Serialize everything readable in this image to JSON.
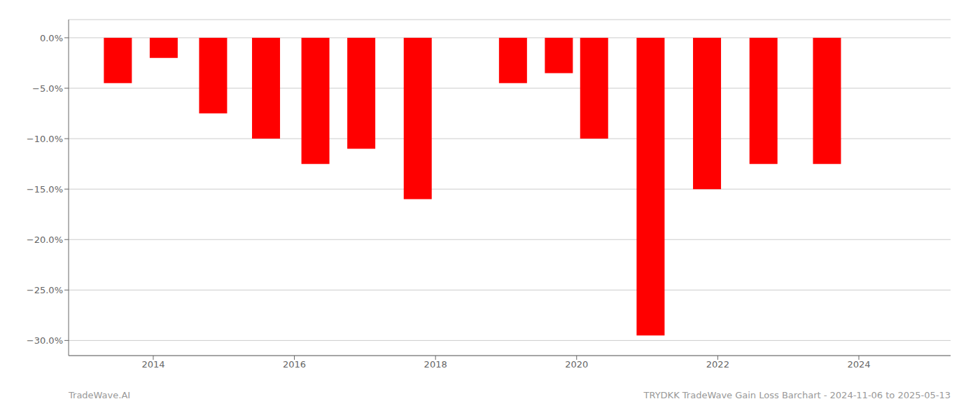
{
  "chart_data": {
    "type": "bar",
    "x": [
      2013.5,
      2014.15,
      2014.85,
      2015.6,
      2016.3,
      2016.95,
      2017.75,
      2019.1,
      2019.75,
      2020.25,
      2021.05,
      2021.85,
      2022.65,
      2023.55
    ],
    "values": [
      -4.5,
      -2.0,
      -7.5,
      -10.0,
      -12.5,
      -11.0,
      -16.0,
      -4.5,
      -3.5,
      -10.0,
      -29.5,
      -15.0,
      -12.5,
      -12.5
    ],
    "color": "#FF0000",
    "xlim": [
      2012.8,
      2025.3
    ],
    "xticks": [
      2014,
      2016,
      2018,
      2020,
      2022,
      2024
    ],
    "ylim": [
      -31.5,
      1.8
    ],
    "yticks": [
      {
        "value": 0.0,
        "label": "0.0%"
      },
      {
        "value": -5.0,
        "label": "−5.0%"
      },
      {
        "value": -10.0,
        "label": "−10.0%"
      },
      {
        "value": -15.0,
        "label": "−15.0%"
      },
      {
        "value": -20.0,
        "label": "−20.0%"
      },
      {
        "value": -25.0,
        "label": "−25.0%"
      },
      {
        "value": -30.0,
        "label": "−30.0%"
      }
    ],
    "grid": "y",
    "annotations": [
      "TradeWave.AI",
      "TRYDKK TradeWave Gain Loss Barchart - 2024-11-06 to 2025-05-13"
    ]
  }
}
